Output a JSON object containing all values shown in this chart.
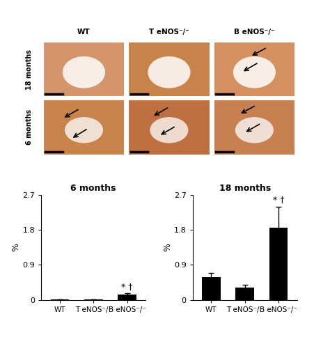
{
  "col_labels": [
    "WT",
    "T eNOS⁻/⁻",
    "B eNOS⁻/⁻"
  ],
  "row_labels": [
    "6 months",
    "18 months"
  ],
  "chart6_title": "6 months",
  "chart18_title": "18 months",
  "percent_label": "%",
  "chart6_values": [
    0.01,
    0.01,
    0.13
  ],
  "chart6_errors": [
    0.005,
    0.005,
    0.04
  ],
  "chart18_values": [
    0.58,
    0.32,
    1.85
  ],
  "chart18_errors": [
    0.12,
    0.07,
    0.55
  ],
  "bar_color": "#000000",
  "ylim": [
    0,
    2.7
  ],
  "yticks": [
    0,
    0.9,
    1.8,
    2.7
  ],
  "ytick_labels": [
    "0",
    "0.9",
    "1.8",
    "2.7"
  ],
  "sig_6": "* †",
  "sig_18": "* †",
  "sig_6_idx": 2,
  "sig_18_idx": 2,
  "background_color": "#ffffff",
  "image_bg": "#f5deb3"
}
